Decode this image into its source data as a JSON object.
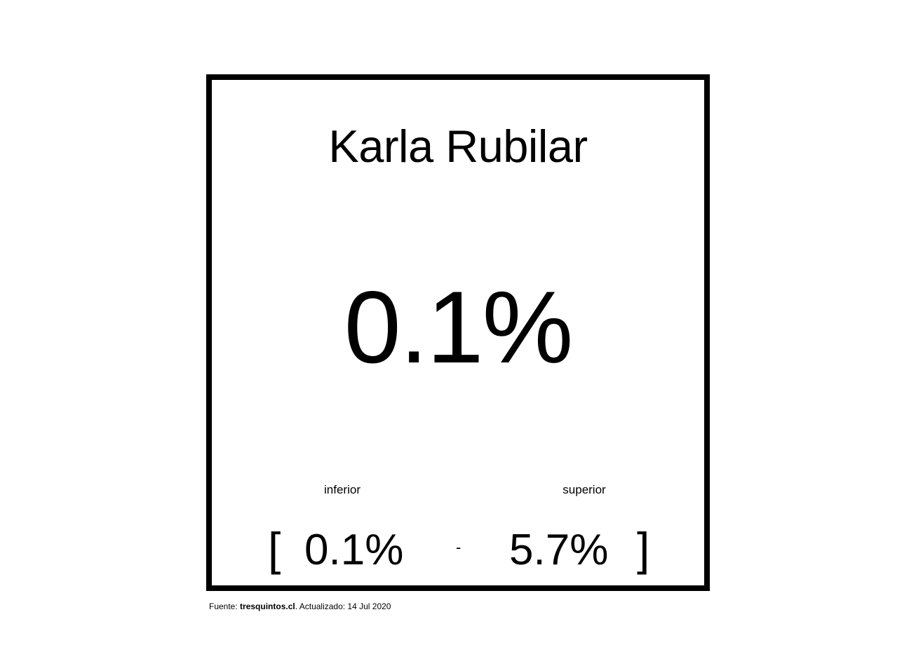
{
  "card": {
    "title": "Karla Rubilar",
    "value": "0.1%",
    "lower_label": "inferior",
    "upper_label": "superior",
    "open_bracket": "[",
    "lower_value": "0.1%",
    "separator": "-",
    "upper_value": "5.7%",
    "close_bracket": "]"
  },
  "footer": {
    "source_prefix": "Fuente: ",
    "source_name": "tresquintos.cl",
    "updated_text": ". Actualizado: 14 Jul 2020"
  },
  "colors": {
    "text": "#000000",
    "border": "#000000",
    "background": "#ffffff"
  }
}
